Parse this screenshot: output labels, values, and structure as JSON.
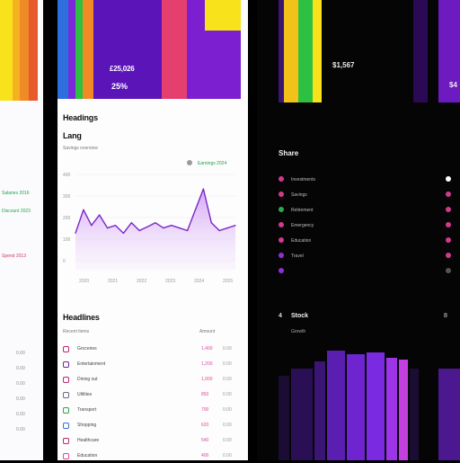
{
  "left_panel": {
    "legend": [
      "Salaries 2016",
      "Discount 2023",
      "Spend 2013"
    ],
    "side_values": [
      "0.00",
      "0.00",
      "0.00",
      "0.00",
      "0.00",
      "0.00"
    ]
  },
  "hero": {
    "amount": "£25,026",
    "percent": "25%"
  },
  "overview": {
    "title": "Headings",
    "subtitle": "Lang",
    "caption": "Savings overview",
    "legend_label": "Earnings 2024",
    "y_ticks": [
      "400",
      "300",
      "200",
      "100",
      "0"
    ],
    "x_ticks": [
      "2020",
      "2021",
      "2022",
      "2023",
      "2024",
      "2025"
    ]
  },
  "chart_data": {
    "type": "area",
    "x": [
      0,
      1,
      2,
      3,
      4,
      5,
      6,
      7,
      8,
      9,
      10,
      11,
      12,
      13,
      14,
      15,
      16,
      17,
      18,
      19,
      20
    ],
    "values": [
      140,
      230,
      170,
      210,
      160,
      170,
      140,
      180,
      150,
      165,
      180,
      160,
      170,
      160,
      150,
      230,
      310,
      180,
      150,
      160,
      170
    ],
    "ylim": [
      0,
      400
    ],
    "title": "",
    "xlabel": "",
    "ylabel": ""
  },
  "transactions": {
    "title": "Headlines",
    "col_left": "Recent items",
    "col_right": "Amount",
    "rows": [
      {
        "label": "Groceries",
        "value": "1,400",
        "extra": "0.00",
        "color": "#c0276f"
      },
      {
        "label": "Entertainment",
        "value": "1,200",
        "extra": "0.00",
        "color": "#7a1ea8"
      },
      {
        "label": "Dining out",
        "value": "1,000",
        "extra": "0.00",
        "color": "#c0276f"
      },
      {
        "label": "Utilities",
        "value": "850",
        "extra": "0.00",
        "color": "#6a6a8a"
      },
      {
        "label": "Transport",
        "value": "700",
        "extra": "0.00",
        "color": "#28a745"
      },
      {
        "label": "Shopping",
        "value": "620",
        "extra": "0.00",
        "color": "#3b6fd6"
      },
      {
        "label": "Healthcare",
        "value": "540",
        "extra": "0.00",
        "color": "#c0276f"
      },
      {
        "label": "Education",
        "value": "400",
        "extra": "0.00",
        "color": "#e0489a"
      }
    ]
  },
  "dark_panel": {
    "stat": "$1,567",
    "stat_right": "$4",
    "section_title": "Share",
    "items": [
      {
        "label": "Investments",
        "color": "#d23a8c"
      },
      {
        "label": "Savings",
        "color": "#d23a8c"
      },
      {
        "label": "Retirement",
        "color": "#2ea84f"
      },
      {
        "label": "Emergency",
        "color": "#d23a8c"
      },
      {
        "label": "Education",
        "color": "#d23a8c"
      },
      {
        "label": "Travel",
        "color": "#8f2fd6"
      },
      {
        "label": "",
        "color": "#8f2fd6"
      }
    ],
    "right_dots": [
      "#ffffff",
      "#d23a8c",
      "#d23a8c",
      "#d23a8c",
      "#d23a8c",
      "#d23a8c",
      "#555555"
    ],
    "stock_title": "Stock",
    "stock_sub": "Growth",
    "stock_left_num": "4",
    "stock_right_num": "8"
  },
  "colors": {
    "purple": "#6a1bc4",
    "violet": "#8a2be2",
    "magenta": "#c23fdc",
    "red": "#e63b3b",
    "orange": "#f08a24",
    "yellow": "#f7e21b",
    "green": "#2ec040",
    "blue": "#2e6fe0",
    "pink": "#e43f8e"
  }
}
